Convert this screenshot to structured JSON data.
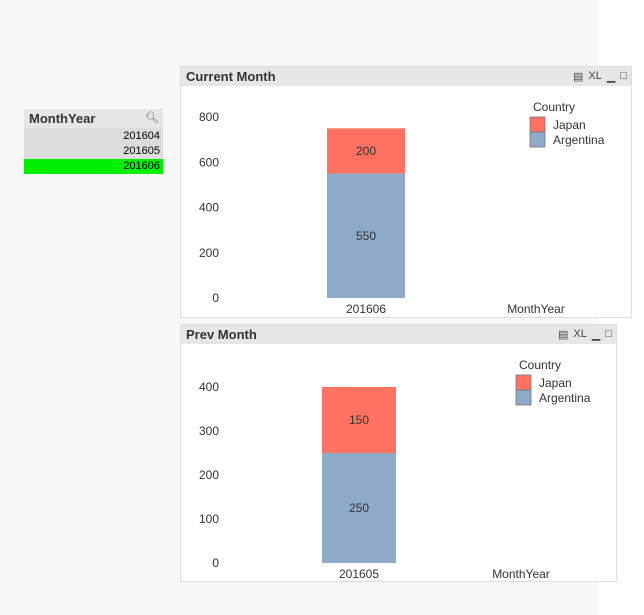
{
  "listbox": {
    "title": "MonthYear",
    "items": [
      {
        "label": "201604",
        "selected": false
      },
      {
        "label": "201605",
        "selected": false
      },
      {
        "label": "201606",
        "selected": true
      }
    ]
  },
  "colors": {
    "japan": "#ff7262",
    "argentina": "#8eaac9",
    "selected": "#00ee00"
  },
  "icons": {
    "print": "print-icon",
    "xl": "XL",
    "minimize": "minimize-icon",
    "maximize": "maximize-icon"
  },
  "chart_data": [
    {
      "type": "bar",
      "title": "Current Month",
      "categories": [
        "201606"
      ],
      "xlabel": "MonthYear",
      "legend_title": "Country",
      "ylim": [
        0,
        800
      ],
      "yticks": [
        0,
        200,
        400,
        600,
        800
      ],
      "series": [
        {
          "name": "Argentina",
          "values": [
            550
          ]
        },
        {
          "name": "Japan",
          "values": [
            200
          ]
        }
      ],
      "legend": [
        "Japan",
        "Argentina"
      ]
    },
    {
      "type": "bar",
      "title": "Prev Month",
      "categories": [
        "201605"
      ],
      "xlabel": "MonthYear",
      "legend_title": "Country",
      "ylim": [
        0,
        400
      ],
      "yticks": [
        0,
        100,
        200,
        300,
        400
      ],
      "series": [
        {
          "name": "Argentina",
          "values": [
            250
          ]
        },
        {
          "name": "Japan",
          "values": [
            150
          ]
        }
      ],
      "legend": [
        "Japan",
        "Argentina"
      ]
    }
  ]
}
